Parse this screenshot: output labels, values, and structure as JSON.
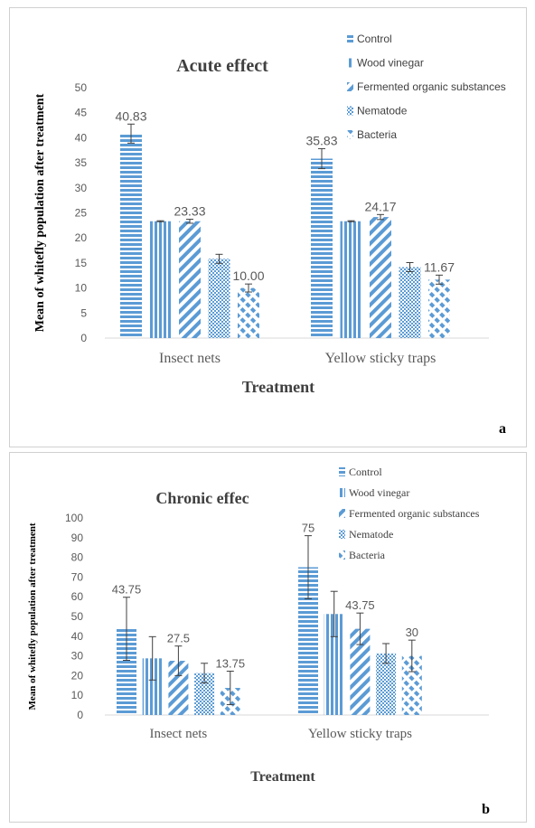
{
  "colors": {
    "bar": "#5b9bd5",
    "errorbar": "#404040",
    "axis_text": "#595959"
  },
  "chart_data": [
    {
      "type": "bar",
      "panel_label": "a",
      "title": "Acute effect",
      "xlabel": "Treatment",
      "ylabel": "Mean of whitefly population after treatment",
      "ylim": [
        0,
        50
      ],
      "yticks": [
        0,
        5,
        10,
        15,
        20,
        25,
        30,
        35,
        40,
        45,
        50
      ],
      "ytick_labels": [
        "0",
        "5",
        "10",
        "15",
        "20",
        "25",
        "30",
        "35",
        "40",
        "45",
        "50"
      ],
      "grid": false,
      "legend_position": "top-right",
      "categories": [
        "Insect nets",
        "Yellow sticky traps"
      ],
      "series": [
        {
          "name": "Control",
          "pattern": "horizontal-stripes",
          "values": [
            40.83,
            35.83
          ],
          "errors": [
            1.9,
            2.0
          ],
          "labels": [
            "40.83",
            "35.83"
          ]
        },
        {
          "name": "Wood vinegar",
          "pattern": "vertical-stripes",
          "values": [
            23.33,
            23.33
          ],
          "errors": [
            0.1,
            0.1
          ],
          "labels": [
            "",
            ""
          ]
        },
        {
          "name": "Fermented organic substances",
          "pattern": "diagonal-stripes",
          "values": [
            23.33,
            24.17
          ],
          "errors": [
            0.4,
            0.5
          ],
          "labels": [
            "23.33",
            "24.17"
          ]
        },
        {
          "name": "Nematode",
          "pattern": "checker",
          "values": [
            15.83,
            14.17
          ],
          "errors": [
            0.9,
            0.9
          ],
          "labels": [
            "",
            ""
          ]
        },
        {
          "name": "Bacteria",
          "pattern": "dashed-diagonal",
          "values": [
            10.0,
            11.67
          ],
          "errors": [
            0.8,
            0.9
          ],
          "labels": [
            "10.00",
            "11.67"
          ]
        }
      ]
    },
    {
      "type": "bar",
      "panel_label": "b",
      "title": "Chronic  effec",
      "xlabel": "Treatment",
      "ylabel": "Mean of whitefly population  after treatment",
      "ylim": [
        0,
        100
      ],
      "yticks": [
        0,
        10,
        20,
        30,
        40,
        50,
        60,
        70,
        80,
        90,
        100
      ],
      "ytick_labels": [
        "0",
        "10",
        "20",
        "30",
        "40",
        "50",
        "60",
        "70",
        "80",
        "90",
        "100"
      ],
      "grid": false,
      "legend_position": "top-right",
      "categories": [
        "Insect nets",
        "Yellow sticky traps"
      ],
      "series": [
        {
          "name": "Control",
          "pattern": "horizontal-stripes",
          "values": [
            43.75,
            75
          ],
          "errors": [
            16,
            16
          ],
          "labels": [
            "43.75",
            "75"
          ]
        },
        {
          "name": "Wood vinegar",
          "pattern": "vertical-stripes",
          "values": [
            28.75,
            51.25
          ],
          "errors": [
            11,
            11.5
          ],
          "labels": [
            "",
            ""
          ]
        },
        {
          "name": "Fermented organic substances",
          "pattern": "diagonal-stripes",
          "values": [
            27.5,
            43.75
          ],
          "errors": [
            7.5,
            8
          ],
          "labels": [
            "27.5",
            "43.75"
          ]
        },
        {
          "name": "Nematode",
          "pattern": "checker",
          "values": [
            21.25,
            31.25
          ],
          "errors": [
            5,
            5
          ],
          "labels": [
            "",
            ""
          ]
        },
        {
          "name": "Bacteria",
          "pattern": "dashed-diagonal",
          "values": [
            13.75,
            30
          ],
          "errors": [
            8.5,
            8
          ],
          "labels": [
            "13.75",
            "30"
          ]
        }
      ]
    }
  ]
}
